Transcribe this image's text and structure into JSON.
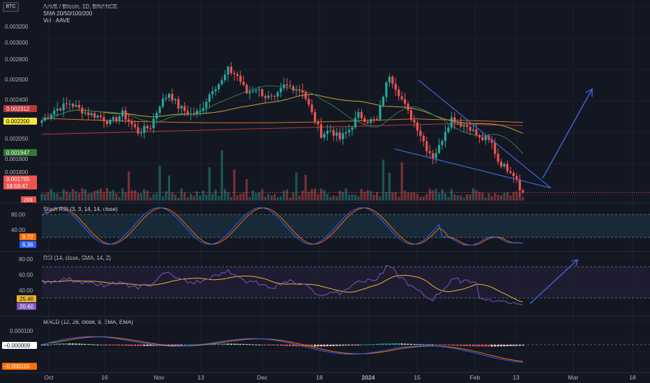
{
  "symbol_badge": "BTC",
  "header": {
    "title": "AAVE / Bitcoin, 1D, BINANCE",
    "line2": "SMA 20/50/100/200",
    "line3": "Vol · AAVE"
  },
  "panes": {
    "stoch_title": "Stoch RSI (3, 3, 14, 14, close)",
    "rsi_title": "RSI (14, close, SMA, 14, 2)",
    "macd_title": "MACD (12, 26, close, 9, EMA, EMA)"
  },
  "colors": {
    "background": "#131722",
    "up": "#26a69a",
    "down": "#ef5350",
    "drawing": "#3f66d9",
    "sma20": "#2e7d4f",
    "sma50": "#c8a53a",
    "sma100": "#d4761f",
    "sma200": "#b7383b",
    "stoch_k": "#2962ff",
    "stoch_d": "#ff6d00",
    "rsi": "#7e57c2",
    "rsi_ma": "#f0b429",
    "macd": "#2962ff",
    "signal": "#ff6d00"
  },
  "chart_data": [
    {
      "type": "candlestick",
      "name_label": "price",
      "y_ticks": [
        "0.003200",
        "0.003000",
        "0.002800",
        "0.002600",
        "0.002400",
        "0.002050",
        "0.001900",
        "0.001800"
      ],
      "price_labels": [
        {
          "text": "0.002312",
          "color": "#b7383b"
        },
        {
          "text": "0.002200",
          "color": "#f5e73b",
          "text_color": "#131722"
        },
        {
          "text": "0.001947",
          "color": "#2e7d32"
        },
        {
          "text": "0.001755",
          "color": "#ef5350"
        },
        {
          "text": "18:59:47",
          "color": "#ef5350"
        }
      ],
      "volume_label": "293",
      "x_ticks": [
        "Oct",
        "16",
        "Nov",
        "13",
        "Dec",
        "18",
        "2024",
        "15",
        "Feb",
        "13",
        "Mar",
        "18"
      ],
      "last_close": 0.001755,
      "trend": "downtrend since late Dec 2023 inside a falling wedge; projected breakout upward"
    },
    {
      "type": "line",
      "title": "Stoch RSI (3, 3, 14, 14, close)",
      "y_ticks": [
        "80.00",
        "40.00"
      ],
      "current_labels": [
        {
          "text": "9.72",
          "color": "#ff6d00"
        },
        {
          "text": "6.36",
          "color": "#2962ff"
        }
      ]
    },
    {
      "type": "line",
      "title": "RSI (14, close, SMA, 14, 2)",
      "y_ticks": [
        "80.00",
        "60.00",
        "40.00"
      ],
      "current_labels": [
        {
          "text": "25.40",
          "color": "#f0b429",
          "text_color": "#131722"
        },
        {
          "text": "20.60",
          "color": "#7e57c2"
        }
      ]
    },
    {
      "type": "bar",
      "title": "MACD (12, 26, close, 9, EMA, EMA)",
      "y_ticks": [
        "0.000100"
      ],
      "current_labels": [
        {
          "text": "−0.000009",
          "color": "#ffffff",
          "text_color": "#131722"
        },
        {
          "text": "−0.000116",
          "color": "#ff6d00"
        }
      ]
    }
  ]
}
